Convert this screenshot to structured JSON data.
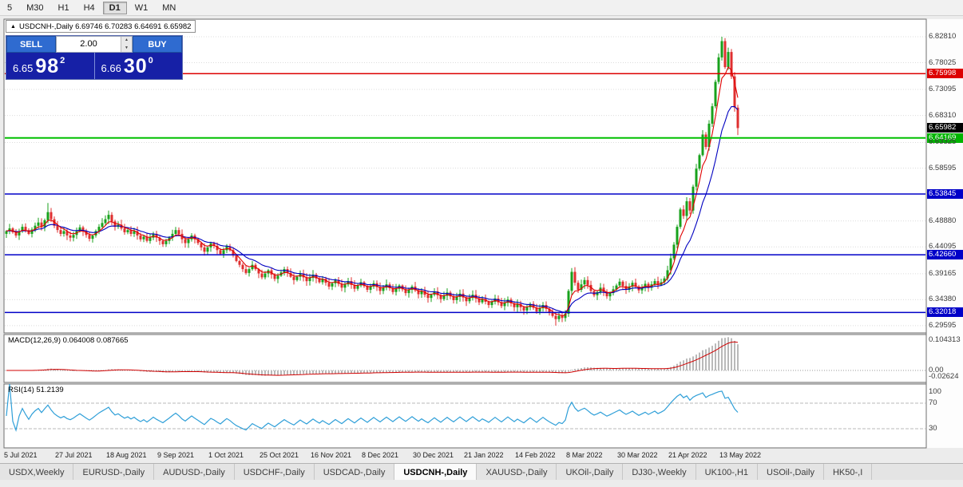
{
  "toolbar": {
    "timeframes": [
      {
        "label": "5",
        "active": false
      },
      {
        "label": "M30",
        "active": false
      },
      {
        "label": "H1",
        "active": false
      },
      {
        "label": "H4",
        "active": false
      },
      {
        "label": "D1",
        "active": true
      },
      {
        "label": "W1",
        "active": false
      },
      {
        "label": "MN",
        "active": false
      }
    ]
  },
  "chart": {
    "collapse_arrow": "▲",
    "title": "USDCNH-,Daily 6.69746 6.70283 6.64691 6.65982"
  },
  "trade_panel": {
    "sell_label": "SELL",
    "buy_label": "BUY",
    "volume_value": "2.00",
    "spin_up_icon": "▲",
    "spin_down_icon": "▼",
    "sell_price_small": "6.65",
    "sell_price_big": "98",
    "sell_price_sup": "2",
    "buy_price_small": "6.66",
    "buy_price_big": "30",
    "buy_price_sup": "0"
  },
  "price_scale": {
    "labels": [
      {
        "text": "6.82810",
        "price": 6.8281,
        "style": "gray"
      },
      {
        "text": "6.78025",
        "price": 6.78025,
        "style": "gray"
      },
      {
        "text": "6.75998",
        "price": 6.75998,
        "style": "red"
      },
      {
        "text": "6.73095",
        "price": 6.73095,
        "style": "gray"
      },
      {
        "text": "6.68310",
        "price": 6.6831,
        "style": "gray"
      },
      {
        "text": "6.65982",
        "price": 6.65982,
        "style": "black"
      },
      {
        "text": "6.64169",
        "price": 6.64169,
        "style": "green"
      },
      {
        "text": "6.63325",
        "price": 6.63325,
        "style": "gray"
      },
      {
        "text": "6.58595",
        "price": 6.58595,
        "style": "gray"
      },
      {
        "text": "6.53845",
        "price": 6.53845,
        "style": "blue"
      },
      {
        "text": "6.48880",
        "price": 6.4888,
        "style": "gray"
      },
      {
        "text": "6.44095",
        "price": 6.44095,
        "style": "gray"
      },
      {
        "text": "6.42660",
        "price": 6.4266,
        "style": "blue"
      },
      {
        "text": "6.39165",
        "price": 6.39165,
        "style": "gray"
      },
      {
        "text": "6.34380",
        "price": 6.3438,
        "style": "gray"
      },
      {
        "text": "6.32018",
        "price": 6.32018,
        "style": "blue"
      },
      {
        "text": "6.29595",
        "price": 6.29595,
        "style": "gray"
      }
    ]
  },
  "macd": {
    "title": "MACD(12,26,9) 0.064008 0.087665",
    "scale_top": "0.104313",
    "scale_zero": "0.00",
    "scale_bottom": "-0.02624"
  },
  "rsi": {
    "title": "RSI(14) 51.2139",
    "scale_top": "100",
    "level_upper": "70",
    "level_lower": "30"
  },
  "tabs": {
    "items": [
      {
        "label": "USDX,Weekly",
        "active": false
      },
      {
        "label": "EURUSD-,Daily",
        "active": false
      },
      {
        "label": "AUDUSD-,Daily",
        "active": false
      },
      {
        "label": "USDCHF-,Daily",
        "active": false
      },
      {
        "label": "USDCAD-,Daily",
        "active": false
      },
      {
        "label": "USDCNH-,Daily",
        "active": true
      },
      {
        "label": "XAUUSD-,Daily",
        "active": false
      },
      {
        "label": "UKOil-,Daily",
        "active": false
      },
      {
        "label": "DJ30-,Weekly",
        "active": false
      },
      {
        "label": "UK100-,H1",
        "active": false
      },
      {
        "label": "USOil-,Daily",
        "active": false
      },
      {
        "label": "HK50-,I",
        "active": false
      }
    ]
  },
  "chart_data": {
    "type": "candlestick",
    "symbol": "USDCNH-",
    "timeframe": "Daily",
    "ohlc_last": {
      "open": 6.69746,
      "high": 6.70283,
      "low": 6.64691,
      "close": 6.65982
    },
    "y_range": [
      6.2826,
      6.8604
    ],
    "closes": [
      6.47,
      6.475,
      6.468,
      6.462,
      6.47,
      6.478,
      6.472,
      6.465,
      6.473,
      6.48,
      6.486,
      6.478,
      6.49,
      6.505,
      6.492,
      6.48,
      6.472,
      6.465,
      6.47,
      6.462,
      6.458,
      6.463,
      6.47,
      6.477,
      6.47,
      6.463,
      6.456,
      6.462,
      6.47,
      6.478,
      6.485,
      6.492,
      6.5,
      6.488,
      6.478,
      6.482,
      6.475,
      6.468,
      6.472,
      6.465,
      6.47,
      6.462,
      6.455,
      6.46,
      6.452,
      6.458,
      6.465,
      6.458,
      6.452,
      6.446,
      6.452,
      6.458,
      6.465,
      6.472,
      6.465,
      6.455,
      6.448,
      6.455,
      6.462,
      6.455,
      6.448,
      6.44,
      6.432,
      6.44,
      6.448,
      6.443,
      6.435,
      6.428,
      6.435,
      6.442,
      6.435,
      6.425,
      6.415,
      6.408,
      6.4,
      6.393,
      6.4,
      6.408,
      6.4,
      6.392,
      6.385,
      6.392,
      6.398,
      6.39,
      6.382,
      6.388,
      6.394,
      6.4,
      6.393,
      6.386,
      6.38,
      6.386,
      6.392,
      6.385,
      6.378,
      6.384,
      6.39,
      6.383,
      6.376,
      6.382,
      6.375,
      6.368,
      6.374,
      6.38,
      6.373,
      6.366,
      6.372,
      6.378,
      6.371,
      6.364,
      6.37,
      6.376,
      6.369,
      6.362,
      6.368,
      6.374,
      6.367,
      6.36,
      6.366,
      6.372,
      6.365,
      6.358,
      6.364,
      6.37,
      6.363,
      6.356,
      6.362,
      6.368,
      6.361,
      6.354,
      6.36,
      6.353,
      6.347,
      6.353,
      6.359,
      6.352,
      6.345,
      6.351,
      6.357,
      6.35,
      6.343,
      6.349,
      6.355,
      6.348,
      6.341,
      6.347,
      6.353,
      6.346,
      6.339,
      6.345,
      6.34,
      6.334,
      6.34,
      6.346,
      6.339,
      6.332,
      6.338,
      6.344,
      6.337,
      6.33,
      6.336,
      6.33,
      6.324,
      6.33,
      6.336,
      6.329,
      6.322,
      6.328,
      6.334,
      6.327,
      6.32,
      6.314,
      6.308,
      6.314,
      6.31,
      6.318,
      6.36,
      6.395,
      6.375,
      6.362,
      6.372,
      6.38,
      6.371,
      6.36,
      6.352,
      6.358,
      6.366,
      6.358,
      6.35,
      6.356,
      6.363,
      6.37,
      6.377,
      6.369,
      6.362,
      6.368,
      6.375,
      6.368,
      6.361,
      6.367,
      6.373,
      6.366,
      6.372,
      6.378,
      6.371,
      6.376,
      6.383,
      6.398,
      6.42,
      6.445,
      6.478,
      6.51,
      6.498,
      6.525,
      6.508,
      6.552,
      6.585,
      6.61,
      6.648,
      6.625,
      6.668,
      6.7,
      6.745,
      6.79,
      6.82,
      6.772,
      6.8,
      6.755,
      6.698,
      6.65982
    ],
    "wick_high_overrides": {
      "13": 6.522,
      "32": 6.508,
      "177": 6.402,
      "224": 6.8281,
      "226": 6.808
    },
    "wick_low_overrides": {
      "172": 6.296
    },
    "hlines": [
      {
        "price": 6.75998,
        "color": "#dd0000",
        "width": 1.5
      },
      {
        "price": 6.64169,
        "color": "#00c000",
        "width": 2
      },
      {
        "price": 6.53845,
        "color": "#0000c8",
        "width": 1.5
      },
      {
        "price": 6.4266,
        "color": "#0000c8",
        "width": 1.5
      },
      {
        "price": 6.32018,
        "color": "#0000c8",
        "width": 1.5
      }
    ],
    "indicators": {
      "ma_fast": {
        "period": 5,
        "color": "#e00000"
      },
      "ma_slow": {
        "period": 13,
        "color": "#0000c0"
      },
      "macd_params": [
        12,
        26,
        9
      ],
      "macd_colors": {
        "histogram": "#b9b9b9",
        "signal": "#d00000"
      },
      "rsi_period": 14,
      "rsi_color": "#2f9fd8"
    },
    "time_labels": [
      {
        "i": 0,
        "text": "5 Jul 2021"
      },
      {
        "i": 16,
        "text": "27 Jul 2021"
      },
      {
        "i": 32,
        "text": "18 Aug 2021"
      },
      {
        "i": 48,
        "text": "9 Sep 2021"
      },
      {
        "i": 64,
        "text": "1 Oct 2021"
      },
      {
        "i": 80,
        "text": "25 Oct 2021"
      },
      {
        "i": 96,
        "text": "16 Nov 2021"
      },
      {
        "i": 112,
        "text": "8 Dec 2021"
      },
      {
        "i": 128,
        "text": "30 Dec 2021"
      },
      {
        "i": 144,
        "text": "21 Jan 2022"
      },
      {
        "i": 160,
        "text": "14 Feb 2022"
      },
      {
        "i": 176,
        "text": "8 Mar 2022"
      },
      {
        "i": 192,
        "text": "30 Mar 2022"
      },
      {
        "i": 208,
        "text": "21 Apr 2022"
      },
      {
        "i": 224,
        "text": "13 May 2022"
      }
    ],
    "candle_colors": {
      "up": "#18a21c",
      "down": "#df2f2f"
    }
  }
}
